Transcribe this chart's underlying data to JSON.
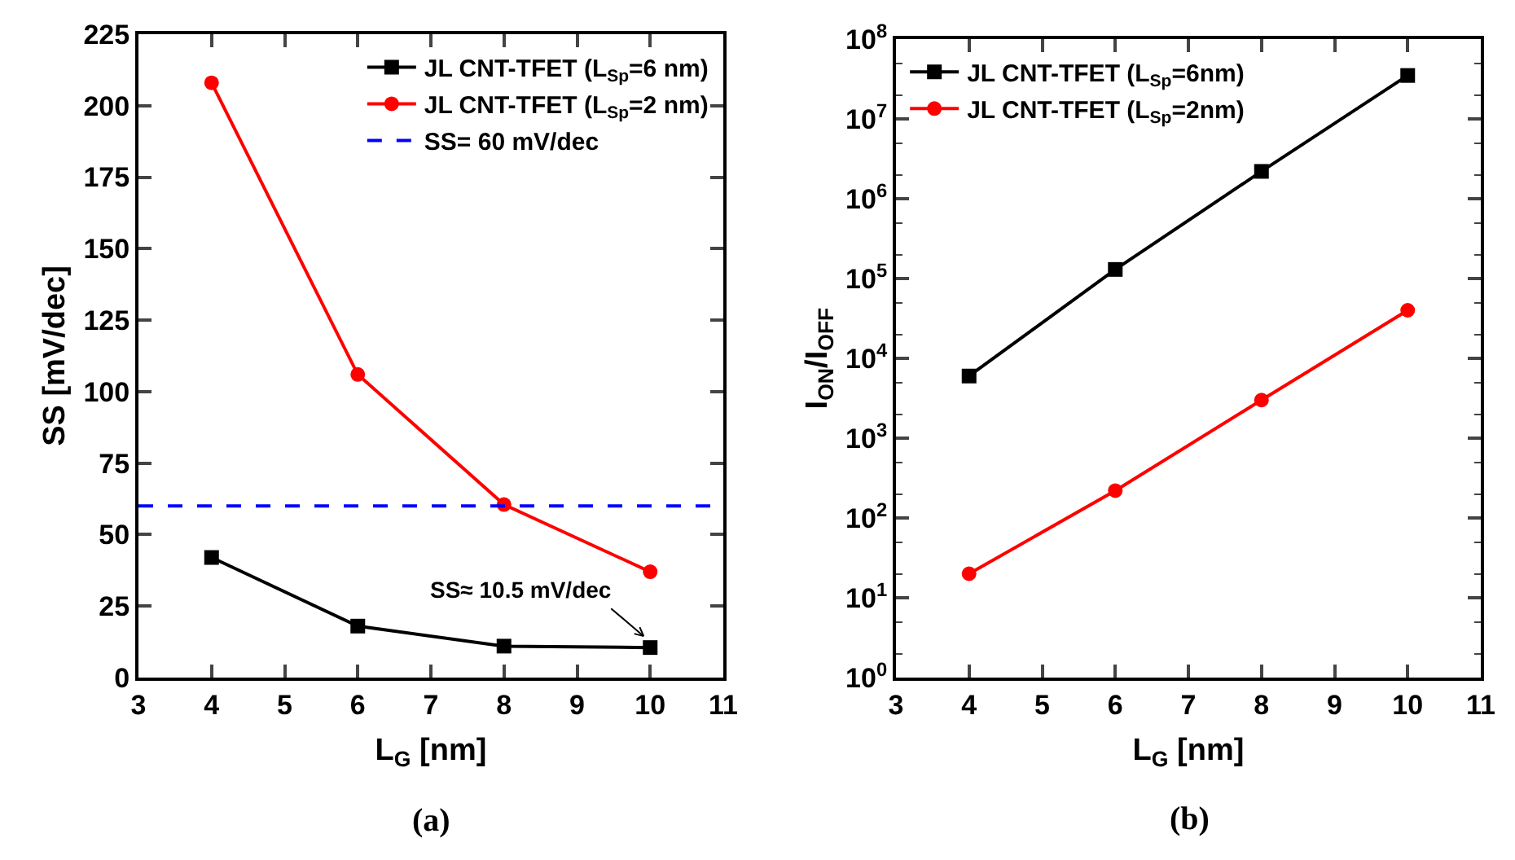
{
  "chart_data": [
    {
      "type": "line",
      "title": "(a)",
      "xlabel": "L$_{G}$ [nm]",
      "ylabel": "SS [mV/dec]",
      "x": [
        4,
        6,
        8,
        10
      ],
      "series": [
        {
          "name": "JL CNT-TFET (L$_{Sp}$=6 nm)",
          "color": "#000000",
          "marker": "square",
          "values": [
            42,
            18,
            11,
            10.5
          ]
        },
        {
          "name": "JL CNT-TFET (L$_{Sp}$=2 nm)",
          "color": "#ff0000",
          "marker": "circle",
          "values": [
            208,
            106,
            60.5,
            37
          ]
        }
      ],
      "ref_lines": [
        {
          "axis": "y",
          "value": 60,
          "label": "SS= 60 mV/dec",
          "color": "#0000ff",
          "line_style": "dashed"
        }
      ],
      "annotations": [
        {
          "text": "SS≈ 10.5 mV/dec",
          "x": 10,
          "y": 10.5
        }
      ],
      "xlim": [
        3,
        11
      ],
      "xticks": [
        3,
        4,
        5,
        6,
        7,
        8,
        9,
        10,
        11
      ],
      "ylim": [
        0,
        225
      ],
      "yticks": [
        0,
        25,
        50,
        75,
        100,
        125,
        150,
        175,
        200,
        225
      ],
      "grid": false,
      "legend": "top right",
      "line_style": "solid"
    },
    {
      "type": "line",
      "title": "(b)",
      "xlabel": "L$_{G}$ [nm]",
      "ylabel": "I$_{ON}$/I$_{OFF}$",
      "x": [
        4,
        6,
        8,
        10
      ],
      "series": [
        {
          "name": "JL CNT-TFET (L$_{Sp}$=6nm)",
          "color": "#000000",
          "marker": "square",
          "values": [
            6000,
            130000,
            2200000,
            35000000
          ]
        },
        {
          "name": "JL CNT-TFET (L$_{Sp}$=2nm)",
          "color": "#ff0000",
          "marker": "circle",
          "values": [
            20,
            220,
            3000,
            40000
          ]
        }
      ],
      "log": "y",
      "xlim": [
        3,
        11
      ],
      "xticks": [
        3,
        4,
        5,
        6,
        7,
        8,
        9,
        10,
        11
      ],
      "ylim": [
        1,
        100000000
      ],
      "yticks": [
        {
          "value": 1,
          "label": "10$^{0}$"
        },
        {
          "value": 10,
          "label": "10$^{1}$"
        },
        {
          "value": 100,
          "label": "10$^{2}$"
        },
        {
          "value": 1000,
          "label": "10$^{3}$"
        },
        {
          "value": 10000,
          "label": "10$^{4}$"
        },
        {
          "value": 100000,
          "label": "10$^{5}$"
        },
        {
          "value": 1000000,
          "label": "10$^{6}$"
        },
        {
          "value": 10000000,
          "label": "10$^{7}$"
        },
        {
          "value": 100000000,
          "label": "10$^{8}$"
        }
      ],
      "grid": false,
      "legend": "top left",
      "line_style": "solid"
    }
  ]
}
